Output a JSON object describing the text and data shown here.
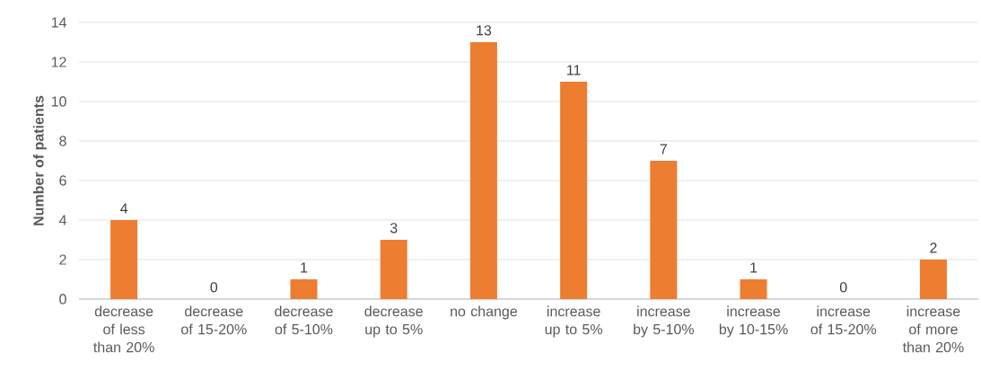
{
  "chart_data": {
    "type": "bar",
    "ylabel": "Number of patients",
    "categories": [
      "decrease of less than 20%",
      "decrease of 15-20%",
      "decrease of 5-10%",
      "decrease up to 5%",
      "no change",
      "increase up to 5%",
      "increase by 5-10%",
      "increase by 10-15%",
      "increase of 15-20%",
      "increase of more than 20%"
    ],
    "values": [
      4,
      0,
      1,
      3,
      13,
      11,
      7,
      1,
      0,
      2
    ],
    "color": "#ed7d31",
    "ylim": [
      0,
      14
    ],
    "yticks": [
      0,
      2,
      4,
      6,
      8,
      10,
      12,
      14
    ],
    "grid": "y",
    "data_labels": true
  }
}
